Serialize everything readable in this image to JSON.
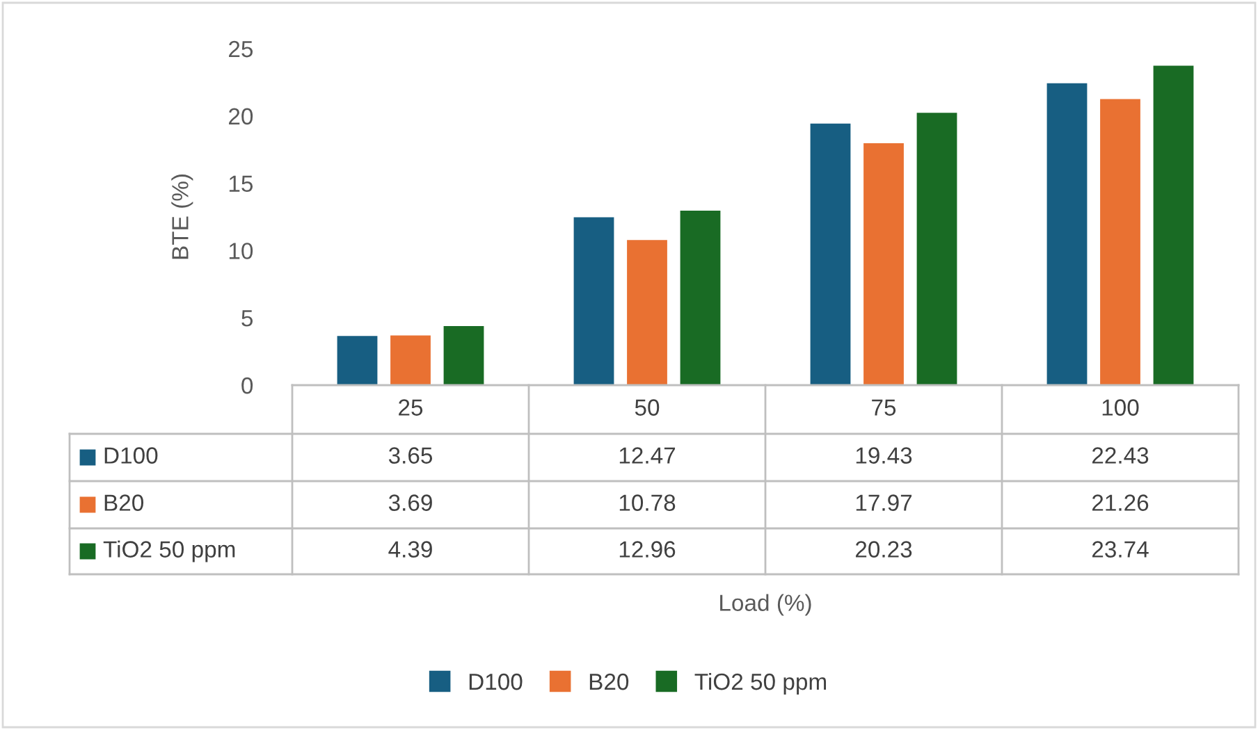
{
  "chart_data": {
    "type": "bar",
    "annotations": [
      "Load (%)"
    ],
    "ylabel": "BTE (%)",
    "categories": [
      "25",
      "50",
      "75",
      "100"
    ],
    "series": [
      {
        "name": "D100",
        "color": "#175e82",
        "values": [
          3.65,
          12.47,
          19.43,
          22.43
        ]
      },
      {
        "name": "B20",
        "color": "#e97132",
        "values": [
          3.69,
          10.78,
          17.97,
          21.26
        ]
      },
      {
        "name": "TiO2 50 ppm",
        "color": "#196b24",
        "values": [
          4.39,
          12.96,
          20.23,
          23.74
        ]
      }
    ],
    "ylim": [
      0,
      25
    ],
    "yticks": [
      0,
      5,
      10,
      15,
      20,
      25
    ],
    "grid": false,
    "legend": "bottom",
    "data_labels": true
  }
}
